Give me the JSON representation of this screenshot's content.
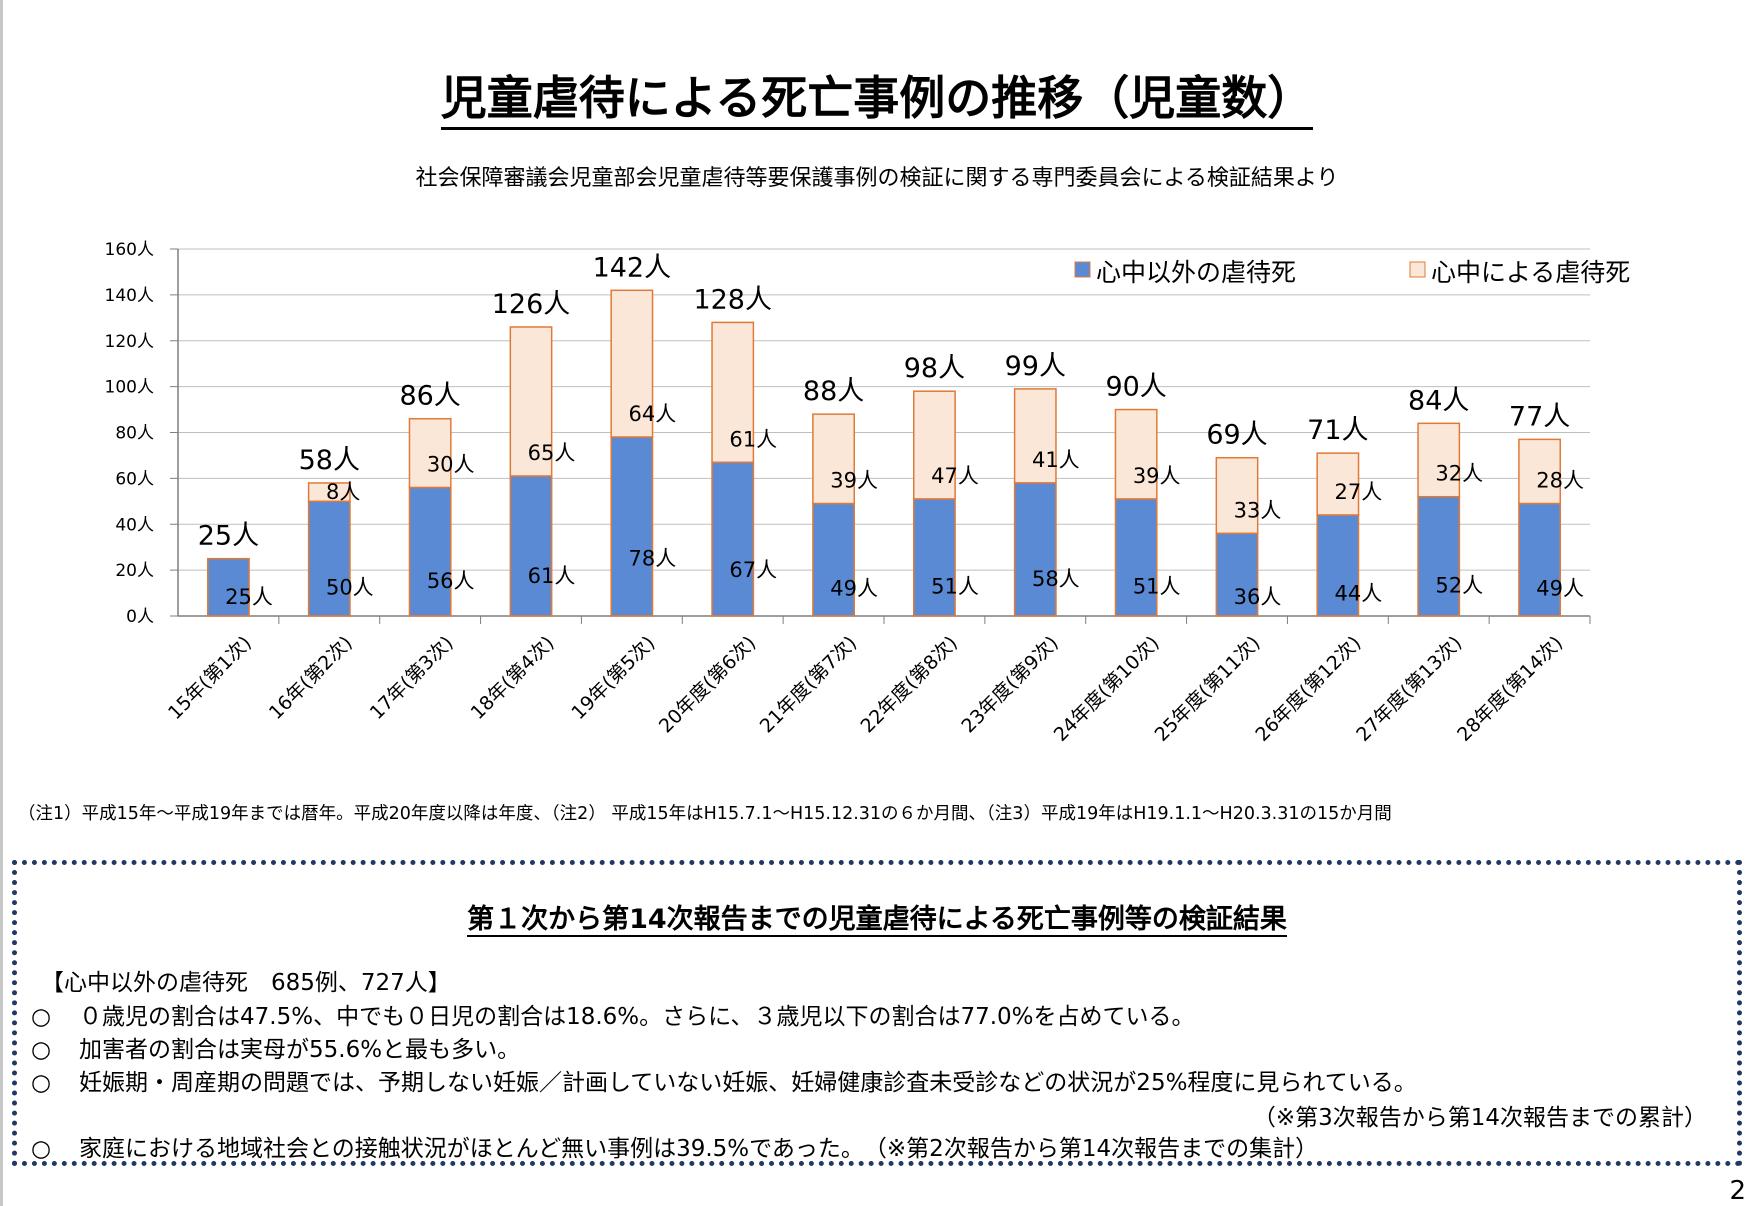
{
  "title": "児童虐待による死亡事例の推移（児童数）",
  "source": "社会保障審議会児童部会児童虐待等要保護事例の検証に関する専門委員会による検証結果より",
  "chart_data": {
    "type": "bar",
    "stacked": true,
    "categories": [
      "15年(第1次)",
      "16年(第2次)",
      "17年(第3次)",
      "18年(第4次)",
      "19年(第5次)",
      "20年度(第6次)",
      "21年度(第7次)",
      "22年度(第8次)",
      "23年度(第9次)",
      "24年度(第10次)",
      "25年度(第11次)",
      "26年度(第12次)",
      "27年度(第13次)",
      "28年度(第14次)"
    ],
    "series": [
      {
        "name": "心中以外の虐待死",
        "color": "#5a8ad4",
        "values": [
          25,
          50,
          56,
          61,
          78,
          67,
          49,
          51,
          58,
          51,
          36,
          44,
          52,
          49
        ]
      },
      {
        "name": "心中による虐待死",
        "color": "#fbe7d8",
        "values": [
          0,
          8,
          30,
          65,
          64,
          61,
          39,
          47,
          41,
          39,
          33,
          27,
          32,
          28
        ]
      }
    ],
    "totals": [
      25,
      58,
      86,
      126,
      142,
      128,
      88,
      98,
      99,
      90,
      69,
      71,
      84,
      77
    ],
    "unit": "人",
    "ylim": [
      0,
      160
    ],
    "yticks": [
      0,
      20,
      40,
      60,
      80,
      100,
      120,
      140,
      160
    ],
    "grid": true,
    "legend_position": "top-right",
    "outline_color": "#e07a38"
  },
  "notes": "（注1）平成15年～平成19年までは暦年。平成20年度以降は年度、（注2） 平成15年はH15.7.1～H15.12.31の６か月間、（注3）平成19年はH19.1.1～H20.3.31の15か月間",
  "box": {
    "title": "第１次から第14次報告までの児童虐待による死亡事例等の検証結果",
    "heading": "【心中以外の虐待死　685例、727人】",
    "bullet_symbol": "○",
    "bullets": [
      "０歳児の割合は47.5%、中でも０日児の割合は18.6%。さらに、３歳児以下の割合は77.0%を占めている。",
      "加害者の割合は実母が55.6%と最も多い。",
      "妊娠期・周産期の問題では、予期しない妊娠／計画していない妊娠、妊婦健康診査未受診などの状況が25%程度に見られている。",
      "家庭における地域社会との接触状況がほとんど無い事例は39.5%であった。　（※第2次報告から第14次報告までの集計）"
    ],
    "note_1": "（※第3次報告から第14次報告までの累計）"
  },
  "page_number": "2"
}
